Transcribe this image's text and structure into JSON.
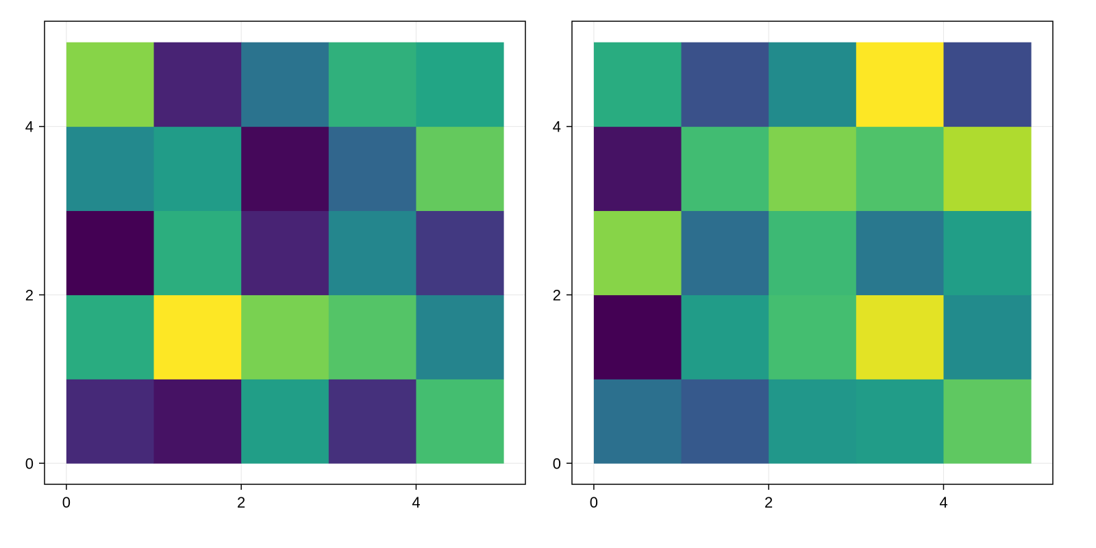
{
  "chart_data": [
    {
      "type": "heatmap",
      "x_edges": [
        0,
        1,
        2,
        3,
        4,
        5
      ],
      "y_edges": [
        0,
        1,
        2,
        3,
        4,
        5
      ],
      "xlim": [
        -0.25,
        5.25
      ],
      "ylim": [
        -0.25,
        5.25
      ],
      "x_ticks": [
        0,
        2,
        4
      ],
      "y_ticks": [
        0,
        2,
        4
      ],
      "x_tick_labels": [
        "0",
        "2",
        "4"
      ],
      "y_tick_labels": [
        "0",
        "2",
        "4"
      ],
      "grid": true,
      "colormap": "viridis",
      "clim": [
        0,
        1
      ],
      "values": [
        [
          0.12,
          0.05,
          0.56,
          0.14,
          0.7
        ],
        [
          0.62,
          1.0,
          0.8,
          0.73,
          0.45
        ],
        [
          0.0,
          0.63,
          0.1,
          0.46,
          0.17
        ],
        [
          0.47,
          0.55,
          0.02,
          0.33,
          0.76
        ],
        [
          0.82,
          0.1,
          0.38,
          0.64,
          0.59
        ]
      ]
    },
    {
      "type": "heatmap",
      "x_edges": [
        0,
        1,
        2,
        3,
        4,
        5
      ],
      "y_edges": [
        0,
        1,
        2,
        3,
        4,
        5
      ],
      "xlim": [
        -0.25,
        5.25
      ],
      "ylim": [
        -0.25,
        5.25
      ],
      "x_ticks": [
        0,
        2,
        4
      ],
      "y_ticks": [
        0,
        2,
        4
      ],
      "x_tick_labels": [
        "0",
        "2",
        "4"
      ],
      "y_tick_labels": [
        "0",
        "2",
        "4"
      ],
      "grid": true,
      "colormap": "viridis",
      "clim": [
        0,
        1
      ],
      "values": [
        [
          0.37,
          0.28,
          0.53,
          0.55,
          0.75
        ],
        [
          0.0,
          0.55,
          0.7,
          0.96,
          0.48
        ],
        [
          0.82,
          0.36,
          0.68,
          0.4,
          0.56
        ],
        [
          0.05,
          0.69,
          0.81,
          0.72,
          0.88
        ],
        [
          0.62,
          0.25,
          0.48,
          1.0,
          0.23
        ]
      ]
    }
  ]
}
